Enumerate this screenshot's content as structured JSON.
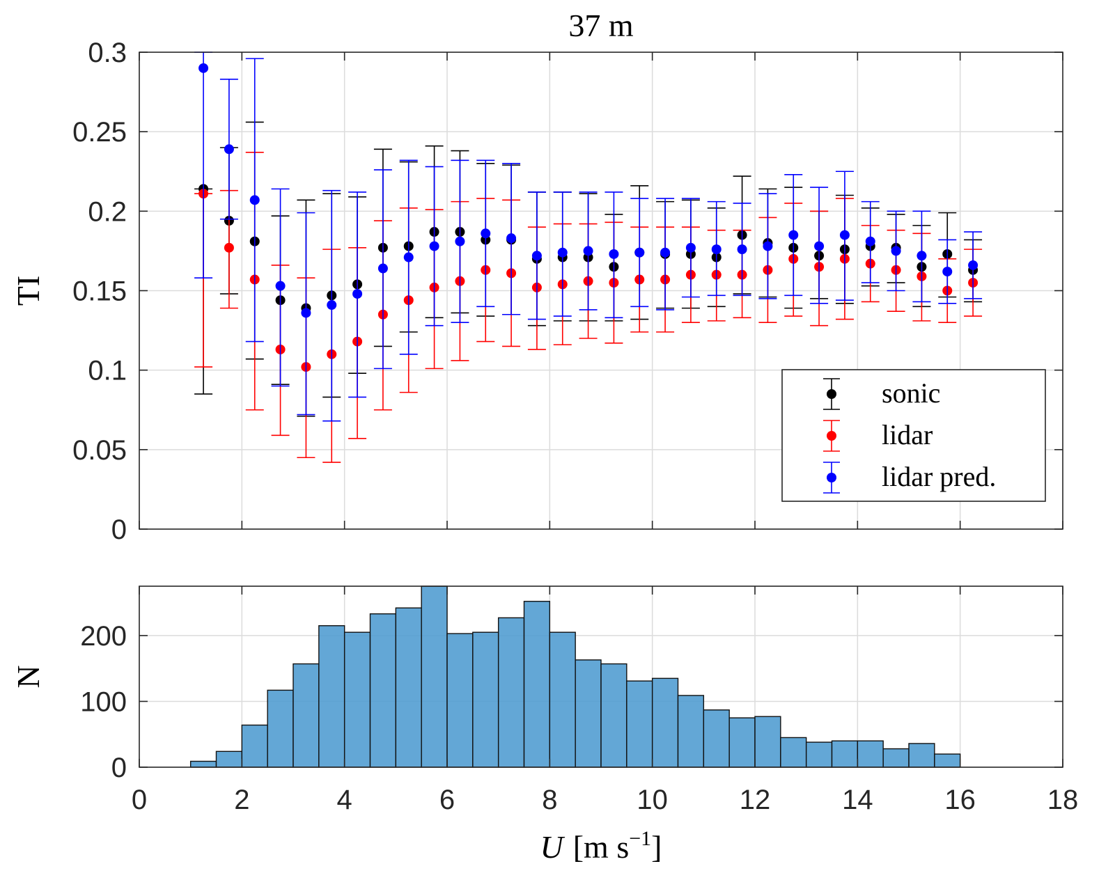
{
  "chart_data": [
    {
      "type": "errorbar-scatter",
      "title": "37 m",
      "ylabel": "TI",
      "xlim": [
        0,
        18
      ],
      "ylim": [
        0,
        0.3
      ],
      "xticks": [
        0,
        2,
        4,
        6,
        8,
        10,
        12,
        14,
        16,
        18
      ],
      "yticks": [
        0,
        0.05,
        0.1,
        0.15,
        0.2,
        0.25,
        0.3
      ],
      "ytick_labels": [
        "0",
        "0.05",
        "0.1",
        "0.15",
        "0.2",
        "0.25",
        "0.3"
      ],
      "grid": true,
      "legend_position": "bottom-right",
      "x": [
        1.25,
        1.75,
        2.25,
        2.75,
        3.25,
        3.75,
        4.25,
        4.75,
        5.25,
        5.75,
        6.25,
        6.75,
        7.25,
        7.75,
        8.25,
        8.75,
        9.25,
        9.75,
        10.25,
        10.75,
        11.25,
        11.75,
        12.25,
        12.75,
        13.25,
        13.75,
        14.25,
        14.75,
        15.25,
        15.75,
        16.25
      ],
      "series": [
        {
          "name": "sonic",
          "color": "#000000",
          "values": [
            0.214,
            0.194,
            0.181,
            0.144,
            0.139,
            0.147,
            0.154,
            0.177,
            0.178,
            0.187,
            0.187,
            0.182,
            0.182,
            0.17,
            0.171,
            0.171,
            0.165,
            0.174,
            0.173,
            0.173,
            0.171,
            0.185,
            0.18,
            0.177,
            0.172,
            0.176,
            0.178,
            0.177,
            0.165,
            0.173,
            0.163
          ],
          "lower": [
            0.085,
            0.148,
            0.107,
            0.091,
            0.071,
            0.083,
            0.098,
            0.115,
            0.124,
            0.133,
            0.136,
            0.134,
            0.135,
            0.128,
            0.131,
            0.131,
            0.131,
            0.132,
            0.139,
            0.139,
            0.14,
            0.148,
            0.146,
            0.139,
            0.145,
            0.142,
            0.153,
            0.155,
            0.14,
            0.146,
            0.143
          ],
          "upper": [
            0.214,
            0.24,
            0.256,
            0.197,
            0.207,
            0.211,
            0.209,
            0.239,
            0.231,
            0.241,
            0.238,
            0.23,
            0.229,
            0.212,
            0.212,
            0.211,
            0.198,
            0.216,
            0.206,
            0.207,
            0.202,
            0.222,
            0.214,
            0.215,
            0.2,
            0.21,
            0.202,
            0.198,
            0.191,
            0.199,
            0.182
          ]
        },
        {
          "name": "lidar",
          "color": "#ff0000",
          "values": [
            0.211,
            0.177,
            0.157,
            0.113,
            0.102,
            0.11,
            0.118,
            0.135,
            0.144,
            0.152,
            0.156,
            0.163,
            0.161,
            0.152,
            0.154,
            0.156,
            0.155,
            0.157,
            0.157,
            0.16,
            0.16,
            0.16,
            0.163,
            0.17,
            0.165,
            0.17,
            0.167,
            0.163,
            0.159,
            0.15,
            0.155
          ],
          "lower": [
            0.102,
            0.139,
            0.075,
            0.059,
            0.045,
            0.042,
            0.057,
            0.075,
            0.086,
            0.101,
            0.106,
            0.118,
            0.115,
            0.113,
            0.116,
            0.12,
            0.117,
            0.124,
            0.124,
            0.13,
            0.131,
            0.133,
            0.13,
            0.134,
            0.128,
            0.132,
            0.143,
            0.137,
            0.131,
            0.13,
            0.134
          ],
          "upper": [
            0.211,
            0.213,
            0.237,
            0.166,
            0.158,
            0.176,
            0.177,
            0.194,
            0.202,
            0.201,
            0.206,
            0.208,
            0.207,
            0.19,
            0.192,
            0.192,
            0.193,
            0.19,
            0.19,
            0.19,
            0.188,
            0.188,
            0.196,
            0.205,
            0.2,
            0.208,
            0.191,
            0.188,
            0.186,
            0.17,
            0.176
          ]
        },
        {
          "name": "lidar pred.",
          "color": "#0000ff",
          "values": [
            0.29,
            0.239,
            0.207,
            0.153,
            0.136,
            0.141,
            0.148,
            0.164,
            0.171,
            0.178,
            0.181,
            0.186,
            0.183,
            0.172,
            0.174,
            0.175,
            0.173,
            0.174,
            0.174,
            0.177,
            0.176,
            0.176,
            0.178,
            0.185,
            0.178,
            0.185,
            0.181,
            0.175,
            0.172,
            0.162,
            0.166
          ],
          "lower": [
            0.158,
            0.195,
            0.118,
            0.09,
            0.072,
            0.068,
            0.083,
            0.101,
            0.11,
            0.128,
            0.13,
            0.14,
            0.135,
            0.132,
            0.134,
            0.138,
            0.133,
            0.14,
            0.138,
            0.146,
            0.147,
            0.147,
            0.145,
            0.147,
            0.142,
            0.144,
            0.155,
            0.15,
            0.143,
            0.142,
            0.145
          ],
          "upper": [
            0.3,
            0.283,
            0.296,
            0.214,
            0.199,
            0.213,
            0.212,
            0.226,
            0.232,
            0.228,
            0.232,
            0.232,
            0.23,
            0.212,
            0.212,
            0.212,
            0.212,
            0.208,
            0.208,
            0.208,
            0.206,
            0.205,
            0.211,
            0.223,
            0.215,
            0.225,
            0.206,
            0.2,
            0.2,
            0.182,
            0.187
          ]
        }
      ]
    },
    {
      "type": "bar",
      "ylabel": "N",
      "xlabel": "U [m s⁻¹]",
      "xlabel_var": "U",
      "xlabel_unit_open": "[m s",
      "xlabel_unit_exp": "−1",
      "xlabel_unit_close": "]",
      "xlim": [
        0,
        18
      ],
      "ylim": [
        0,
        275
      ],
      "xticks": [
        0,
        2,
        4,
        6,
        8,
        10,
        12,
        14,
        16,
        18
      ],
      "xtick_labels": [
        "0",
        "2",
        "4",
        "6",
        "8",
        "10",
        "12",
        "14",
        "16",
        "18"
      ],
      "yticks": [
        0,
        100,
        200
      ],
      "ytick_labels": [
        "0",
        "100",
        "200"
      ],
      "bin_width": 0.5,
      "bin_starts": [
        1.0,
        1.5,
        2.0,
        2.5,
        3.0,
        3.5,
        4.0,
        4.5,
        5.0,
        5.5,
        6.0,
        6.5,
        7.0,
        7.5,
        8.0,
        8.5,
        9.0,
        9.5,
        10.0,
        10.5,
        11.0,
        11.5,
        12.0,
        12.5,
        13.0,
        13.5,
        14.0,
        14.5,
        15.0,
        15.5,
        16.0
      ],
      "values": [
        9,
        24,
        64,
        117,
        157,
        215,
        205,
        233,
        242,
        276,
        203,
        205,
        227,
        252,
        205,
        163,
        157,
        131,
        135,
        109,
        87,
        75,
        77,
        45,
        38,
        40,
        40,
        28,
        36,
        20,
        0
      ],
      "bar_color": "#4d9bd0",
      "grid": true
    }
  ]
}
